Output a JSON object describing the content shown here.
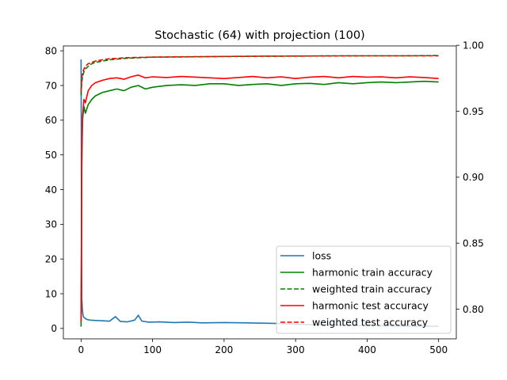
{
  "chart_data": {
    "type": "line",
    "title": "Stochastic (64) with projection (100)",
    "xlabel": "",
    "ylabel_left": "",
    "ylabel_right": "",
    "xlim": [
      -24.75,
      524.75
    ],
    "ylim_left": [
      -3.0,
      81.4
    ],
    "ylim_right": [
      0.7775,
      0.9995
    ],
    "x_ticks": [
      0,
      100,
      200,
      300,
      400,
      500
    ],
    "y_left_ticks": [
      0,
      10,
      20,
      30,
      40,
      50,
      60,
      70,
      80
    ],
    "y_right_ticks": [
      0.8,
      0.85,
      0.9,
      0.95,
      1.0
    ],
    "y_right_tick_labels": [
      "0.80",
      "0.85",
      "0.90",
      "0.95",
      "1.00"
    ],
    "grid": false,
    "legend_position": "lower-right",
    "series": [
      {
        "name": "loss",
        "axis": "left",
        "color": "#1f77b4",
        "dash": "solid",
        "x": [
          0,
          1,
          2,
          3,
          5,
          8,
          12,
          20,
          30,
          40,
          48,
          55,
          65,
          75,
          80,
          85,
          95,
          110,
          130,
          150,
          170,
          200,
          230,
          260,
          280,
          300,
          320,
          350,
          380,
          400,
          420,
          450,
          480,
          500
        ],
        "values": [
          77.5,
          8.5,
          5.0,
          3.5,
          3.0,
          2.6,
          2.4,
          2.3,
          2.2,
          2.1,
          3.4,
          2.0,
          1.9,
          2.4,
          3.8,
          2.1,
          1.8,
          1.9,
          1.7,
          1.8,
          1.6,
          1.7,
          1.6,
          1.5,
          1.4,
          1.2,
          1.1,
          1.0,
          0.9,
          0.8,
          0.8,
          0.7,
          0.7,
          0.6
        ]
      },
      {
        "name": "harmonic train accuracy",
        "axis": "left",
        "color": "#008000",
        "dash": "solid",
        "x": [
          0,
          1,
          2,
          4,
          6,
          10,
          15,
          20,
          30,
          40,
          50,
          60,
          70,
          80,
          90,
          100,
          120,
          140,
          160,
          180,
          200,
          220,
          240,
          260,
          280,
          300,
          320,
          340,
          360,
          380,
          400,
          420,
          440,
          460,
          480,
          500
        ],
        "values": [
          0.5,
          46.0,
          60.0,
          64.0,
          62.0,
          64.5,
          66.0,
          67.0,
          68.0,
          68.5,
          69.0,
          68.5,
          69.5,
          70.0,
          69.0,
          69.5,
          70.0,
          70.2,
          70.0,
          70.5,
          70.5,
          70.0,
          70.3,
          70.5,
          70.0,
          70.5,
          70.6,
          70.3,
          70.8,
          70.5,
          70.8,
          71.0,
          70.8,
          71.0,
          71.2,
          71.0
        ]
      },
      {
        "name": "weighted train accuracy",
        "axis": "right",
        "color": "#008000",
        "dash": "dashed",
        "x": [
          0,
          1,
          2,
          4,
          6,
          10,
          15,
          20,
          30,
          40,
          50,
          60,
          80,
          100,
          150,
          200,
          250,
          300,
          350,
          400,
          450,
          500
        ],
        "values": [
          0.962,
          0.972,
          0.976,
          0.98,
          0.982,
          0.984,
          0.986,
          0.987,
          0.988,
          0.989,
          0.9895,
          0.99,
          0.9905,
          0.991,
          0.9912,
          0.9915,
          0.9917,
          0.9918,
          0.992,
          0.992,
          0.992,
          0.9922
        ]
      },
      {
        "name": "harmonic test accuracy",
        "axis": "left",
        "color": "#ff0000",
        "dash": "solid",
        "x": [
          0,
          1,
          2,
          4,
          6,
          10,
          15,
          20,
          30,
          40,
          50,
          60,
          70,
          80,
          90,
          100,
          120,
          140,
          160,
          180,
          200,
          220,
          240,
          260,
          280,
          300,
          320,
          340,
          360,
          380,
          400,
          420,
          440,
          460,
          480,
          500
        ],
        "values": [
          2.0,
          50.0,
          61.0,
          66.0,
          65.0,
          68.5,
          70.0,
          70.8,
          71.5,
          72.0,
          72.2,
          71.8,
          72.5,
          73.0,
          72.2,
          72.5,
          72.3,
          72.6,
          72.4,
          72.2,
          72.0,
          72.3,
          72.6,
          72.2,
          72.5,
          72.0,
          72.4,
          72.6,
          72.2,
          72.6,
          72.4,
          72.5,
          72.2,
          72.5,
          72.3,
          72.0
        ]
      },
      {
        "name": "weighted test accuracy",
        "axis": "right",
        "color": "#ff0000",
        "dash": "dashed",
        "x": [
          0,
          1,
          2,
          4,
          6,
          10,
          15,
          20,
          30,
          40,
          50,
          60,
          80,
          100,
          150,
          200,
          250,
          300,
          350,
          400,
          450,
          500
        ],
        "values": [
          0.965,
          0.975,
          0.979,
          0.982,
          0.984,
          0.986,
          0.987,
          0.988,
          0.989,
          0.9898,
          0.99,
          0.9905,
          0.9908,
          0.991,
          0.9913,
          0.9915,
          0.9917,
          0.9918,
          0.9919,
          0.992,
          0.992,
          0.992
        ]
      }
    ]
  }
}
